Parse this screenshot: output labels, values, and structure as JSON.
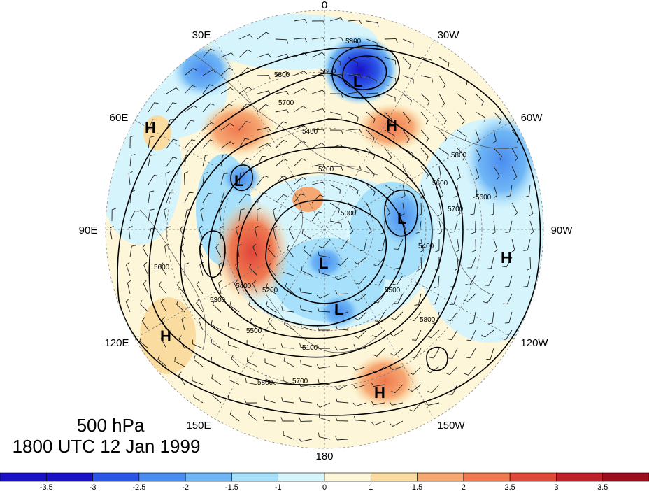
{
  "map": {
    "level": "500 hPa",
    "valid_time": "1800 UTC 12 Jan 1999",
    "projection": "north polar stereographic",
    "longitude_labels": [
      "0",
      "30W",
      "60W",
      "90W",
      "120W",
      "150W",
      "180",
      "150E",
      "120E",
      "90E",
      "60E",
      "30E"
    ],
    "pressure_centers": [
      {
        "type": "L"
      },
      {
        "type": "H"
      },
      {
        "type": "H"
      },
      {
        "type": "L"
      },
      {
        "type": "L"
      },
      {
        "type": "L"
      },
      {
        "type": "L"
      },
      {
        "type": "H"
      },
      {
        "type": "H"
      },
      {
        "type": "H"
      }
    ],
    "contour_labels": [
      "5800",
      "5800",
      "5700",
      "5600",
      "5400",
      "5800",
      "5600",
      "5700",
      "5400",
      "5200",
      "5000",
      "5600",
      "5500",
      "5800",
      "5400",
      "5300",
      "5200",
      "5100",
      "5700",
      "5800",
      "5500",
      "5600"
    ],
    "colorbar": {
      "tick_labels": [
        "-3.5",
        "-3",
        "-2.5",
        "-2",
        "-1.5",
        "-1",
        "0",
        "1",
        "1.5",
        "2",
        "2.5",
        "3",
        "3.5"
      ],
      "colors": [
        "#1a10c8",
        "#2b55e6",
        "#4a8df0",
        "#6fb6f5",
        "#a6e0fa",
        "#d6f4fc",
        "#fdf6d9",
        "#fbdca0",
        "#f6a873",
        "#ef7a50",
        "#e04a3a",
        "#c0202a",
        "#9c0d1e"
      ]
    }
  }
}
